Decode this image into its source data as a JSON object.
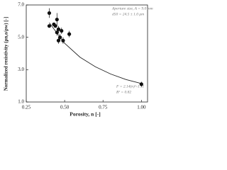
{
  "chart_data": {
    "type": "scatter",
    "xlabel": "Porosity, n [-]",
    "ylabel": "Normalized resistivity (ρn,o/ρw) [-]",
    "annotations": [
      "Aperture size, A = 9.0 mm",
      "d50 = 24.5 ± 1.0 μm",
      "F = 2.14(n)^-1.11",
      "R² = 0.82"
    ],
    "x": [
      0.4,
      0.4,
      0.43,
      0.44,
      0.45,
      0.45,
      0.46,
      0.46,
      0.47,
      0.48,
      0.49,
      0.53,
      1.0
    ],
    "values": [
      6.5,
      5.7,
      5.8,
      5.7,
      6.1,
      5.3,
      5.5,
      4.8,
      5.0,
      5.4,
      4.8,
      5.2,
      2.1
    ],
    "errors": [
      0.3,
      0.1,
      0.1,
      0.1,
      0.4,
      0.2,
      0.2,
      0.2,
      0.2,
      0.2,
      0.2,
      0.2,
      0.15
    ],
    "color": "#111",
    "fit_line": {
      "x": [
        0.4,
        0.5,
        0.6,
        0.7,
        0.8,
        0.9,
        1.0
      ],
      "values": [
        5.9,
        4.63,
        3.77,
        3.18,
        2.73,
        2.39,
        2.14
      ]
    },
    "xlim": [
      0.25,
      1.04
    ],
    "ylim": [
      1.0,
      7.0
    ],
    "xticks": [
      {
        "value": 0.25,
        "label": "0.25"
      },
      {
        "value": 0.5,
        "label": "0.50"
      },
      {
        "value": 0.75,
        "label": "0.75"
      },
      {
        "value": 1.0,
        "label": "1.00"
      }
    ],
    "yticks": [
      {
        "value": 1.0,
        "label": "1.0"
      },
      {
        "value": 3.0,
        "label": "3.0"
      },
      {
        "value": 5.0,
        "label": "5.0"
      },
      {
        "value": 7.0,
        "label": "7.0"
      }
    ]
  }
}
